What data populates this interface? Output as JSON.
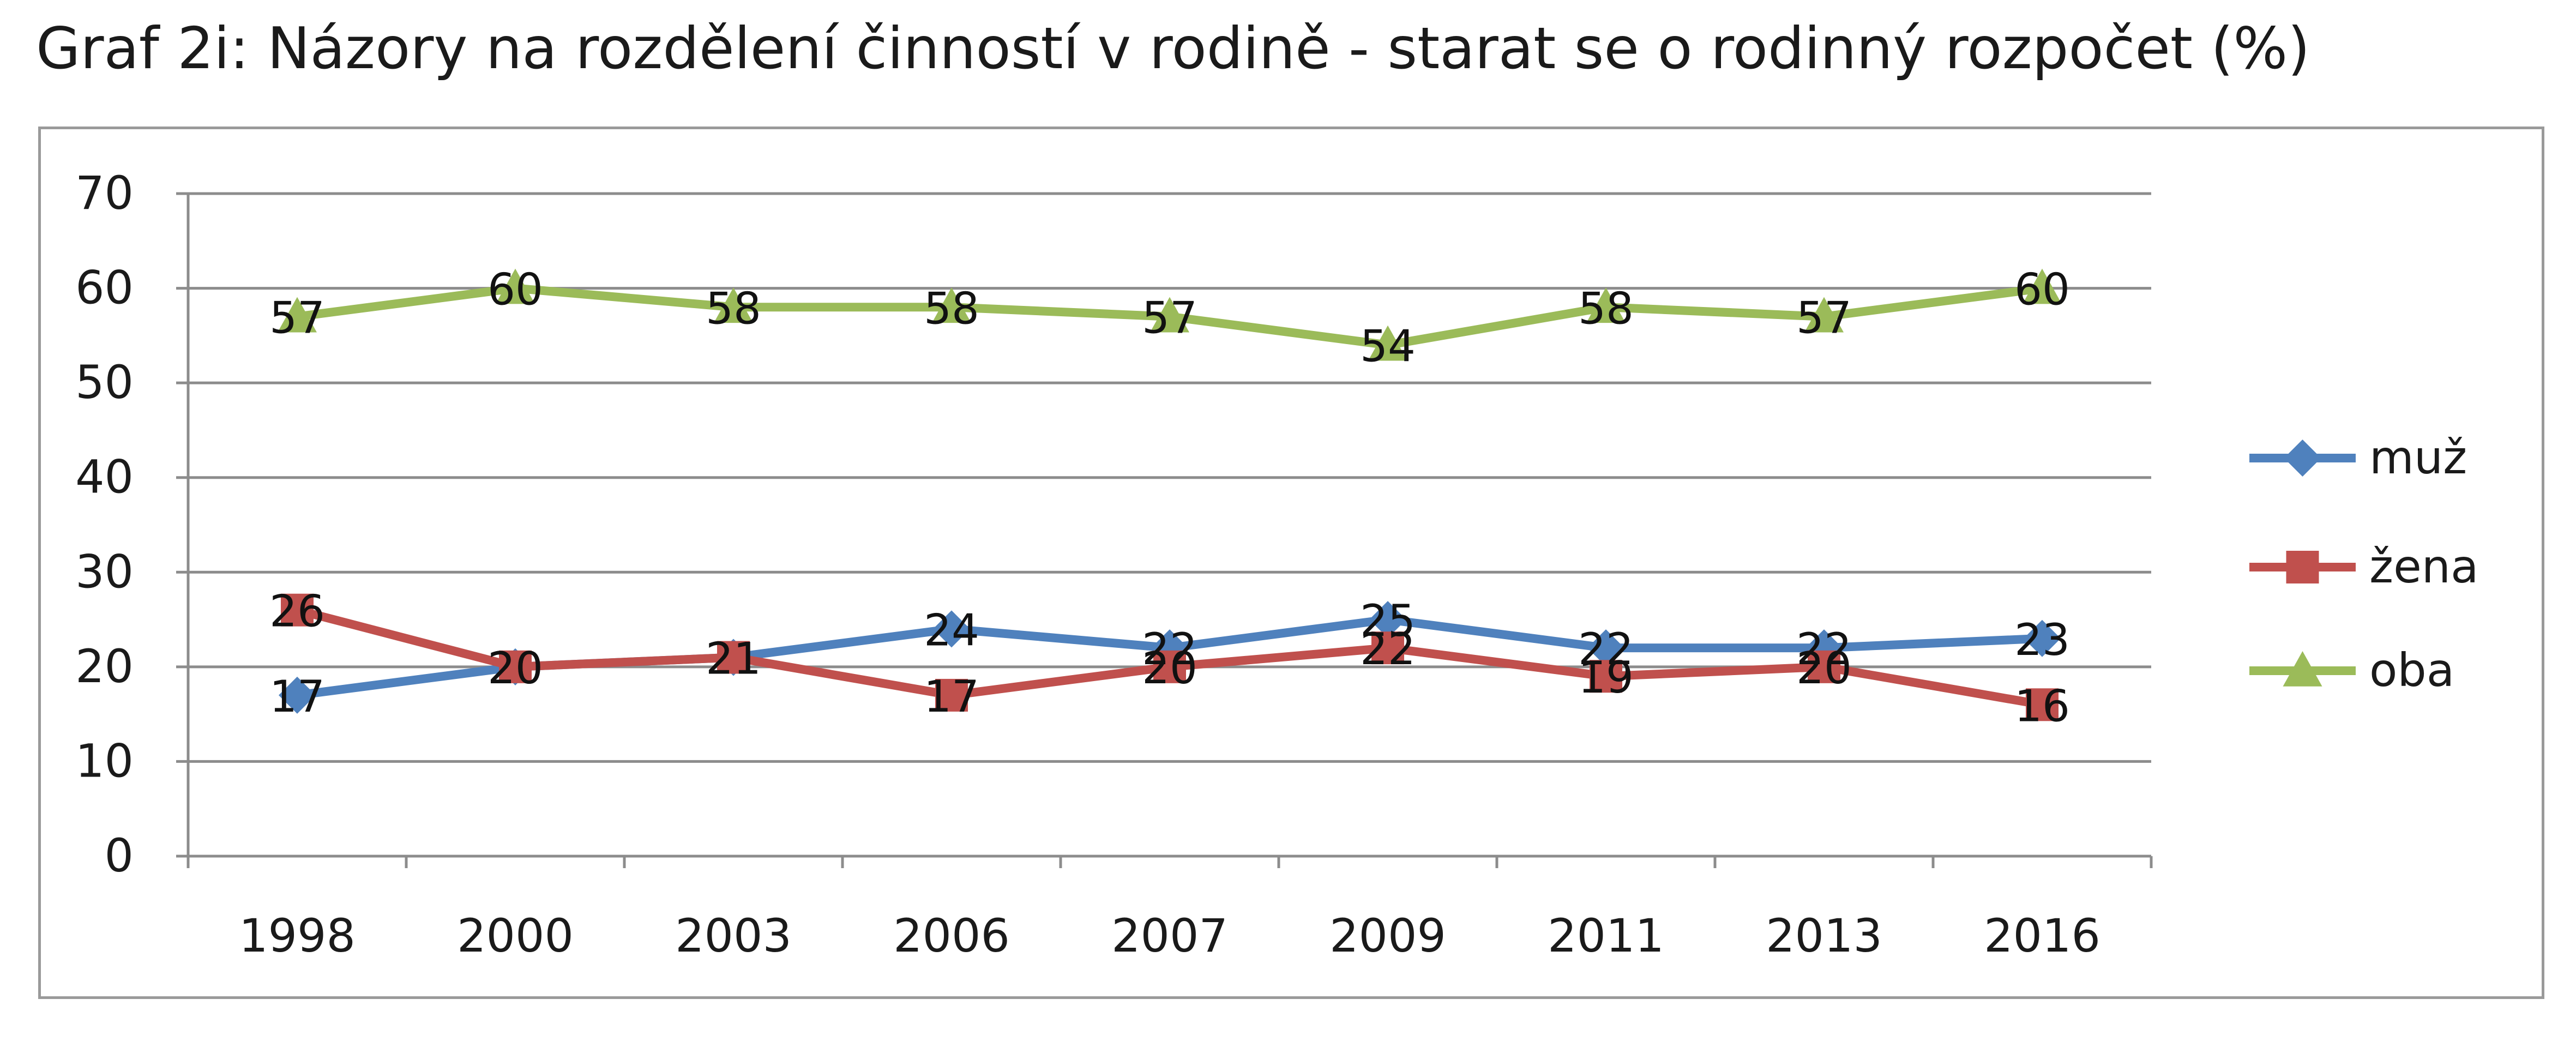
{
  "title": "Graf 2i: Názory na rozdělení činností v rodině - starat se o rodinný rozpočet (%)",
  "chart_data": {
    "type": "line",
    "categories": [
      "1998",
      "2000",
      "2003",
      "2006",
      "2007",
      "2009",
      "2011",
      "2013",
      "2016"
    ],
    "ylim": [
      0,
      70
    ],
    "yticks": [
      "0",
      "10",
      "20",
      "30",
      "40",
      "50",
      "60",
      "70"
    ],
    "grid": true,
    "legend_position": "right",
    "series": [
      {
        "name": "muž",
        "color": "#4f81bd",
        "marker": "diamond",
        "values": [
          17,
          20,
          21,
          24,
          22,
          25,
          22,
          22,
          23
        ]
      },
      {
        "name": "žena",
        "color": "#c0504d",
        "marker": "square",
        "values": [
          26,
          20,
          21,
          17,
          20,
          22,
          19,
          20,
          16
        ]
      },
      {
        "name": "oba",
        "color": "#9bbb59",
        "marker": "triangle",
        "values": [
          57,
          60,
          58,
          58,
          57,
          54,
          58,
          57,
          60
        ]
      }
    ]
  }
}
